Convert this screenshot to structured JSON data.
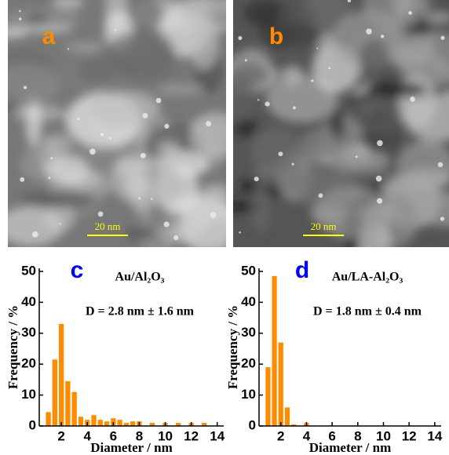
{
  "images": [
    {
      "label": "a",
      "scale_bar": "20 nm"
    },
    {
      "label": "b",
      "scale_bar": "20 nm"
    }
  ],
  "chart_data": [
    {
      "type": "bar",
      "panel_label": "c",
      "title": "Au/Al₂O₃",
      "annotation": "D = 2.8 nm ± 1.6 nm",
      "x_label": "Diameter / nm",
      "y_label": "Frequency / %",
      "color": "#ff8c00",
      "x": [
        1.0,
        1.5,
        2.0,
        2.5,
        3.0,
        3.5,
        4.0,
        4.5,
        5.0,
        5.5,
        6.0,
        6.5,
        7.0,
        7.5,
        8.0,
        9.0,
        10.0,
        11.0,
        12.0,
        13.0
      ],
      "values": [
        4.5,
        21.5,
        33,
        14.5,
        11,
        3,
        2,
        3.5,
        2,
        1.5,
        2.5,
        2,
        1,
        1.5,
        1.5,
        1,
        1,
        1,
        1,
        1
      ],
      "xlim": [
        0.3,
        14.5
      ],
      "ylim": [
        0,
        51
      ],
      "xticks": [
        2,
        4,
        6,
        8,
        10,
        12,
        14
      ],
      "yticks": [
        0,
        10,
        20,
        30,
        40,
        50
      ]
    },
    {
      "type": "bar",
      "panel_label": "d",
      "title": "Au/LA-Al₂O₃",
      "annotation": "D = 1.8 nm ± 0.4 nm",
      "x_label": "Diameter / nm",
      "y_label": "Frequency / %",
      "color": "#ff8c00",
      "x": [
        1.0,
        1.5,
        2.0,
        2.5,
        3.0,
        4.0
      ],
      "values": [
        19,
        48.5,
        27,
        6,
        0.5,
        1
      ],
      "xlim": [
        0.3,
        14.5
      ],
      "ylim": [
        0,
        51
      ],
      "xticks": [
        2,
        4,
        6,
        8,
        10,
        12,
        14
      ],
      "yticks": [
        0,
        10,
        20,
        30,
        40,
        50
      ]
    }
  ]
}
